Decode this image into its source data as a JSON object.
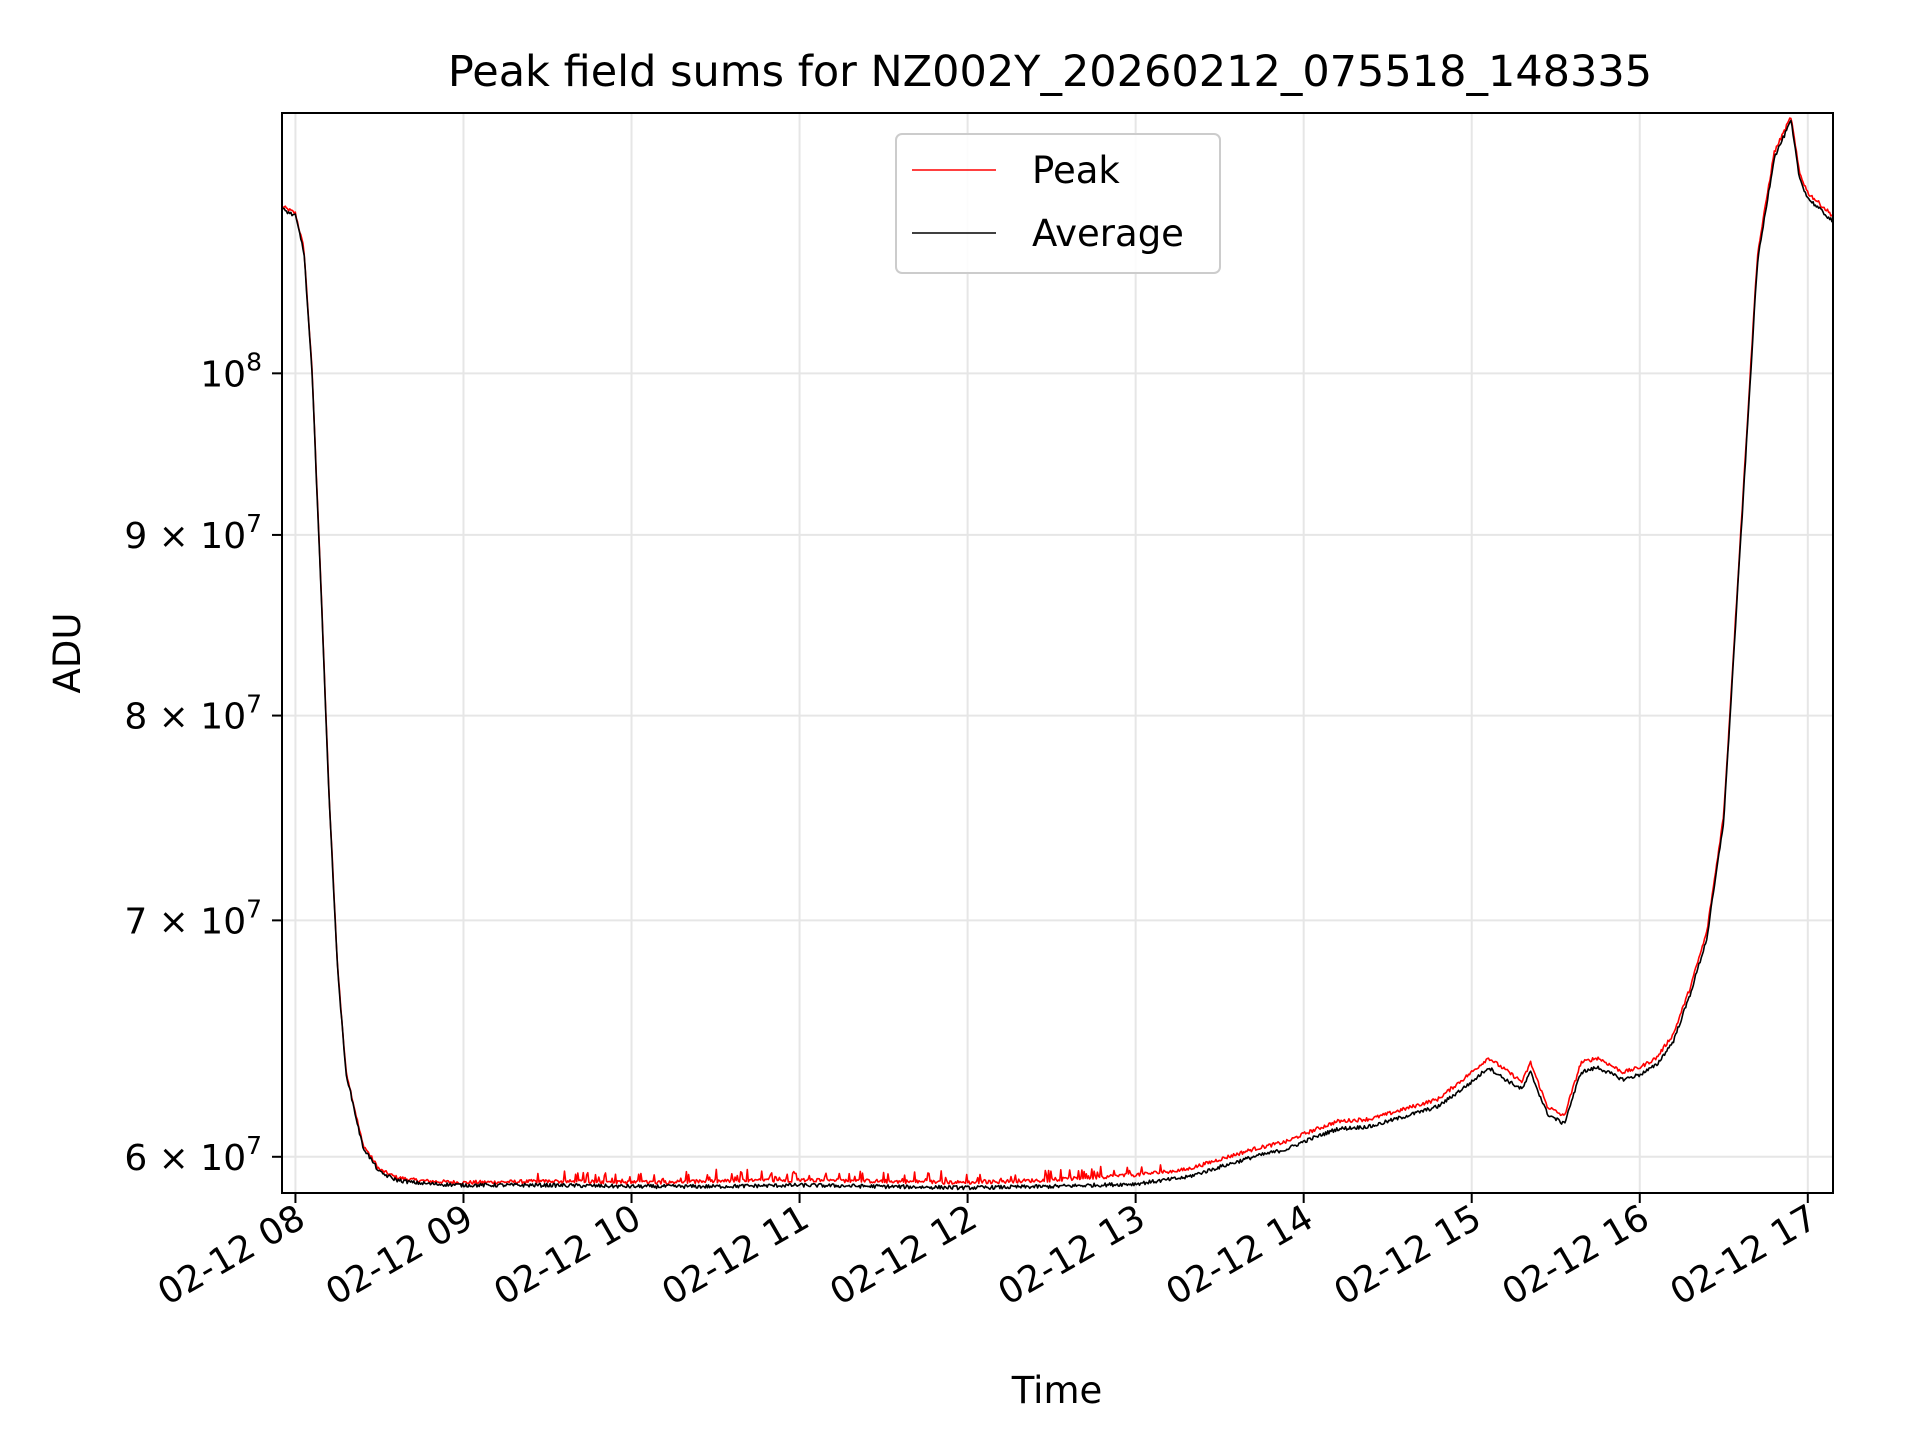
{
  "chart_data": {
    "type": "line",
    "title": "Peak field sums for NZ002Y_20260212_075518_148335",
    "xlabel": "Time",
    "ylabel": "ADU",
    "y_scale": "log",
    "ylim": [
      58600000,
      118500000
    ],
    "xlim_hours": [
      7.92,
      17.15
    ],
    "grid": true,
    "legend_position": "upper center",
    "x_ticks": [
      {
        "value": 8,
        "label": "02-12 08"
      },
      {
        "value": 9,
        "label": "02-12 09"
      },
      {
        "value": 10,
        "label": "02-12 10"
      },
      {
        "value": 11,
        "label": "02-12 11"
      },
      {
        "value": 12,
        "label": "02-12 12"
      },
      {
        "value": 13,
        "label": "02-12 13"
      },
      {
        "value": 14,
        "label": "02-12 14"
      },
      {
        "value": 15,
        "label": "02-12 15"
      },
      {
        "value": 16,
        "label": "02-12 16"
      },
      {
        "value": 17,
        "label": "02-12 17"
      }
    ],
    "y_ticks": [
      {
        "value": 60000000,
        "mantissa": "6 × 10",
        "exponent": "7"
      },
      {
        "value": 70000000,
        "mantissa": "7 × 10",
        "exponent": "7"
      },
      {
        "value": 80000000,
        "mantissa": "8 × 10",
        "exponent": "7"
      },
      {
        "value": 90000000,
        "mantissa": "9 × 10",
        "exponent": "7"
      },
      {
        "value": 100000000,
        "mantissa": "10",
        "exponent": "8"
      }
    ],
    "series": [
      {
        "name": "Peak",
        "color": "#ff0000",
        "x_hours": [
          7.92,
          8.0,
          8.05,
          8.1,
          8.15,
          8.2,
          8.25,
          8.3,
          8.4,
          8.5,
          8.6,
          8.7,
          8.8,
          9.0,
          9.5,
          10.0,
          10.5,
          11.0,
          11.5,
          12.0,
          12.5,
          13.0,
          13.3,
          13.5,
          13.7,
          13.9,
          14.0,
          14.2,
          14.4,
          14.6,
          14.8,
          15.0,
          15.1,
          15.2,
          15.3,
          15.35,
          15.45,
          15.55,
          15.65,
          15.75,
          15.9,
          16.0,
          16.1,
          16.2,
          16.3,
          16.4,
          16.5,
          16.6,
          16.7,
          16.8,
          16.9,
          16.95,
          17.0,
          17.15
        ],
        "values": [
          111500000,
          111000000,
          108500000,
          100000000,
          87500000,
          76000000,
          68000000,
          63500000,
          60500000,
          59500000,
          59200000,
          59100000,
          59050000,
          59000000,
          59050000,
          59000000,
          59050000,
          59100000,
          59050000,
          59000000,
          59100000,
          59300000,
          59500000,
          59900000,
          60300000,
          60600000,
          60900000,
          61400000,
          61500000,
          61900000,
          62300000,
          63400000,
          64000000,
          63500000,
          63000000,
          63800000,
          62000000,
          61600000,
          63800000,
          64000000,
          63400000,
          63600000,
          64000000,
          65000000,
          67000000,
          69500000,
          75000000,
          90000000,
          108000000,
          115500000,
          118200000,
          114000000,
          112500000,
          110800000
        ]
      },
      {
        "name": "Average",
        "color": "#000000",
        "x_hours": [
          7.92,
          8.0,
          8.05,
          8.1,
          8.15,
          8.2,
          8.25,
          8.3,
          8.4,
          8.5,
          8.6,
          8.7,
          8.8,
          9.0,
          9.5,
          10.0,
          10.5,
          11.0,
          11.5,
          12.0,
          12.5,
          13.0,
          13.3,
          13.5,
          13.7,
          13.9,
          14.0,
          14.2,
          14.4,
          14.6,
          14.8,
          15.0,
          15.1,
          15.2,
          15.3,
          15.35,
          15.45,
          15.55,
          15.65,
          15.75,
          15.9,
          16.0,
          16.1,
          16.2,
          16.3,
          16.4,
          16.5,
          16.6,
          16.7,
          16.8,
          16.9,
          16.95,
          17.0,
          17.15
        ],
        "values": [
          111300000,
          110800000,
          108300000,
          99800000,
          87300000,
          75900000,
          67900000,
          63400000,
          60400000,
          59400000,
          59100000,
          59000000,
          58950000,
          58900000,
          58900000,
          58850000,
          58850000,
          58900000,
          58850000,
          58800000,
          58850000,
          58950000,
          59200000,
          59600000,
          60000000,
          60300000,
          60600000,
          61100000,
          61200000,
          61600000,
          62000000,
          63000000,
          63600000,
          63100000,
          62700000,
          63400000,
          61700000,
          61300000,
          63400000,
          63600000,
          63100000,
          63300000,
          63700000,
          64700000,
          66700000,
          69200000,
          74700000,
          89600000,
          107500000,
          115100000,
          117900000,
          113600000,
          112100000,
          110400000
        ]
      }
    ]
  }
}
